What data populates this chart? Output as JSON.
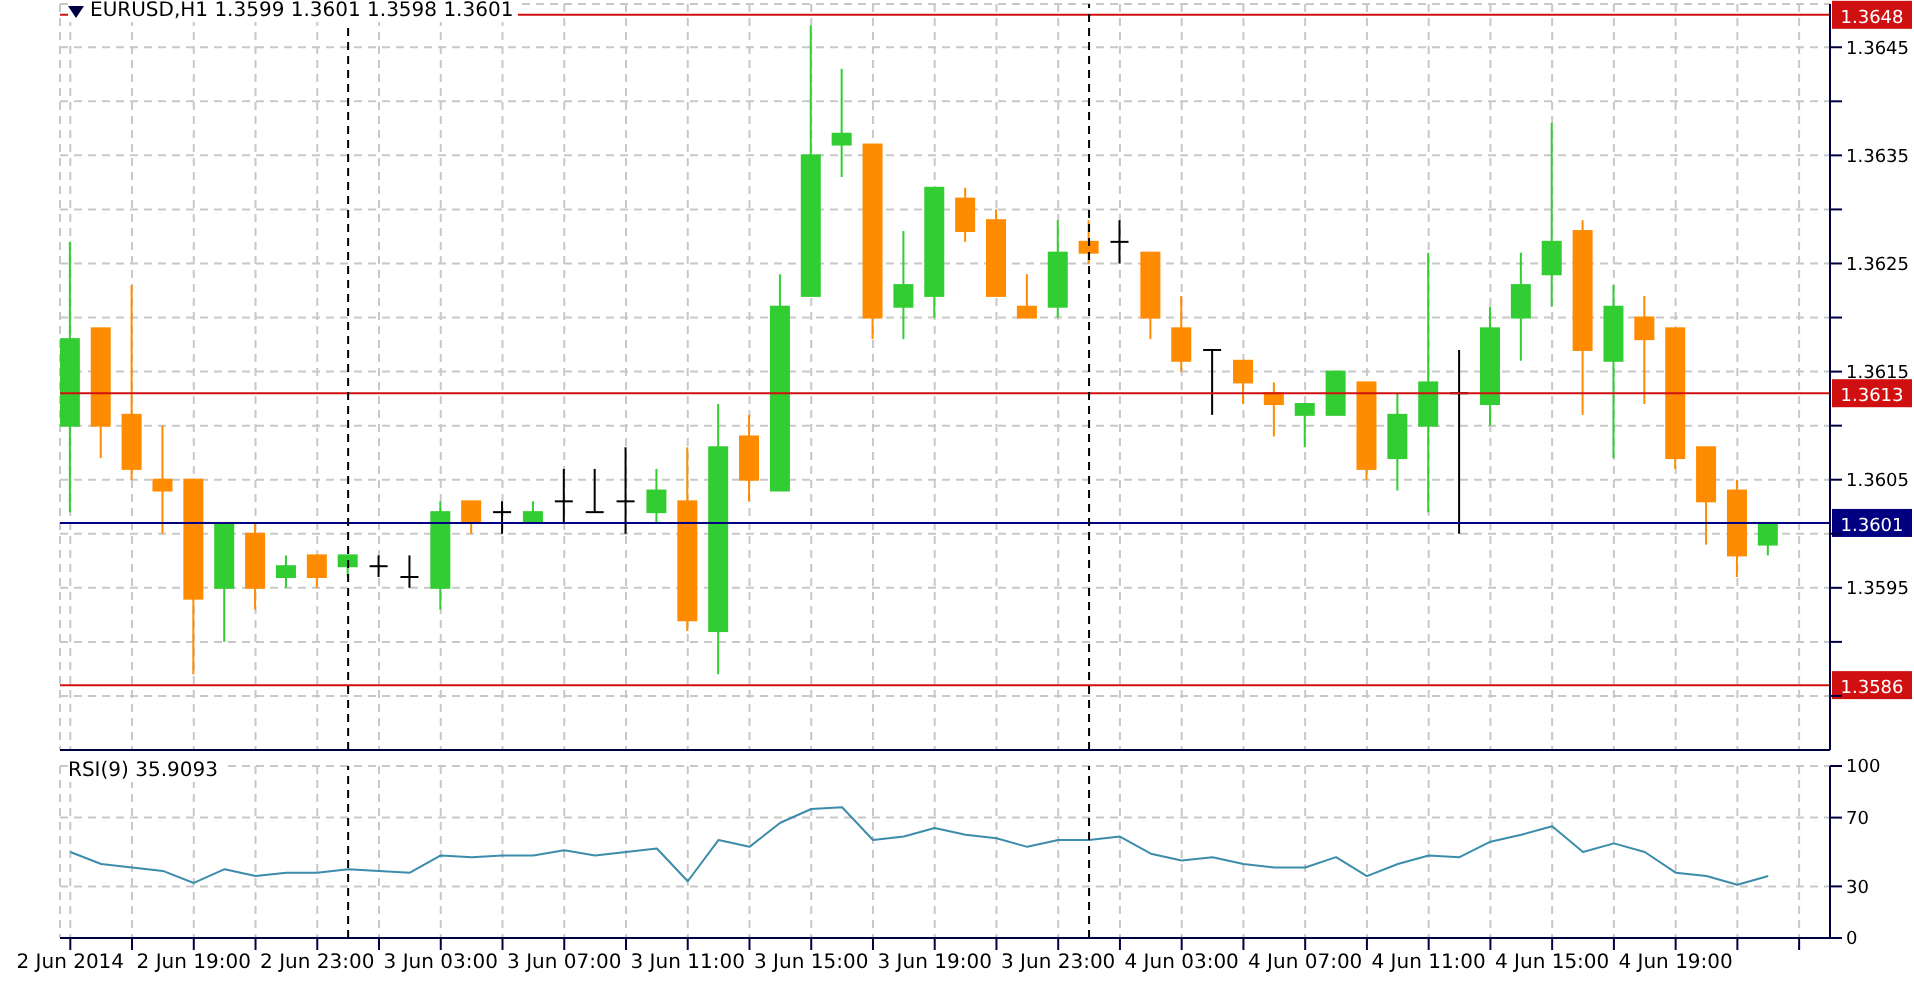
{
  "chart_data": [
    {
      "type": "candlestick",
      "title": "EURUSD,H1 1.3599 1.3601 1.3598 1.3601",
      "x": [
        "2014-06-02T15:00",
        "2014-06-02T16:00",
        "2014-06-02T17:00",
        "2014-06-02T18:00",
        "2014-06-02T19:00",
        "2014-06-02T20:00",
        "2014-06-02T21:00",
        "2014-06-02T22:00",
        "2014-06-02T23:00",
        "2014-06-03T00:00",
        "2014-06-03T01:00",
        "2014-06-03T02:00",
        "2014-06-03T03:00",
        "2014-06-03T04:00",
        "2014-06-03T05:00",
        "2014-06-03T06:00",
        "2014-06-03T07:00",
        "2014-06-03T08:00",
        "2014-06-03T09:00",
        "2014-06-03T10:00",
        "2014-06-03T11:00",
        "2014-06-03T12:00",
        "2014-06-03T13:00",
        "2014-06-03T14:00",
        "2014-06-03T15:00",
        "2014-06-03T16:00",
        "2014-06-03T17:00",
        "2014-06-03T18:00",
        "2014-06-03T19:00",
        "2014-06-03T20:00",
        "2014-06-03T21:00",
        "2014-06-03T22:00",
        "2014-06-03T23:00",
        "2014-06-04T00:00",
        "2014-06-04T01:00",
        "2014-06-04T02:00",
        "2014-06-04T03:00",
        "2014-06-04T04:00",
        "2014-06-04T05:00",
        "2014-06-04T06:00",
        "2014-06-04T07:00",
        "2014-06-04T08:00",
        "2014-06-04T09:00",
        "2014-06-04T10:00",
        "2014-06-04T11:00",
        "2014-06-04T12:00",
        "2014-06-04T13:00",
        "2014-06-04T14:00",
        "2014-06-04T15:00",
        "2014-06-04T16:00",
        "2014-06-04T17:00",
        "2014-06-04T18:00",
        "2014-06-04T19:00",
        "2014-06-04T20:00",
        "2014-06-04T21:00",
        "2014-06-04T22:00"
      ],
      "ohlc": [
        [
          1.361,
          1.3627,
          1.3602,
          1.3618
        ],
        [
          1.3619,
          1.3619,
          1.3607,
          1.361
        ],
        [
          1.3611,
          1.3623,
          1.3605,
          1.3606
        ],
        [
          1.3605,
          1.361,
          1.36,
          1.3604
        ],
        [
          1.3605,
          1.3605,
          1.3587,
          1.3594
        ],
        [
          1.3595,
          1.3601,
          1.359,
          1.3601
        ],
        [
          1.36,
          1.3601,
          1.3593,
          1.3595
        ],
        [
          1.3596,
          1.3598,
          1.3595,
          1.3597
        ],
        [
          1.3598,
          1.3598,
          1.3595,
          1.3596
        ],
        [
          1.3597,
          1.3598,
          1.3596,
          1.3598
        ],
        [
          1.3597,
          1.3598,
          1.3596,
          1.3597
        ],
        [
          1.3596,
          1.3598,
          1.3595,
          1.3596
        ],
        [
          1.3595,
          1.3603,
          1.3593,
          1.3602
        ],
        [
          1.3603,
          1.3603,
          1.36,
          1.3601
        ],
        [
          1.3602,
          1.3603,
          1.36,
          1.3602
        ],
        [
          1.3601,
          1.3603,
          1.3601,
          1.3602
        ],
        [
          1.3603,
          1.3606,
          1.3601,
          1.3603
        ],
        [
          1.3602,
          1.3606,
          1.3602,
          1.3602
        ],
        [
          1.3603,
          1.3608,
          1.36,
          1.3603
        ],
        [
          1.3602,
          1.3606,
          1.3601,
          1.3604
        ],
        [
          1.3603,
          1.3608,
          1.3591,
          1.3592
        ],
        [
          1.3591,
          1.3612,
          1.3587,
          1.3608
        ],
        [
          1.3609,
          1.3611,
          1.3603,
          1.3605
        ],
        [
          1.3604,
          1.3624,
          1.3604,
          1.3621
        ],
        [
          1.3622,
          1.3647,
          1.3622,
          1.3635
        ],
        [
          1.3636,
          1.3643,
          1.3633,
          1.3637
        ],
        [
          1.3636,
          1.3636,
          1.3618,
          1.362
        ],
        [
          1.3621,
          1.3628,
          1.3618,
          1.3623
        ],
        [
          1.3622,
          1.3632,
          1.362,
          1.3632
        ],
        [
          1.3631,
          1.3632,
          1.3627,
          1.3628
        ],
        [
          1.3629,
          1.363,
          1.3622,
          1.3622
        ],
        [
          1.3621,
          1.3624,
          1.362,
          1.362
        ],
        [
          1.3621,
          1.3629,
          1.362,
          1.3626
        ],
        [
          1.3627,
          1.3629,
          1.3625,
          1.3626
        ],
        [
          1.3627,
          1.3629,
          1.3625,
          1.3627
        ],
        [
          1.3626,
          1.3626,
          1.3618,
          1.362
        ],
        [
          1.3619,
          1.3622,
          1.3615,
          1.3616
        ],
        [
          1.3617,
          1.3617,
          1.3611,
          1.3617
        ],
        [
          1.3616,
          1.3616,
          1.3612,
          1.3614
        ],
        [
          1.3613,
          1.3614,
          1.3609,
          1.3612
        ],
        [
          1.3611,
          1.3612,
          1.3608,
          1.3612
        ],
        [
          1.3611,
          1.3615,
          1.3611,
          1.3615
        ],
        [
          1.3614,
          1.3614,
          1.3605,
          1.3606
        ],
        [
          1.3607,
          1.3613,
          1.3604,
          1.3611
        ],
        [
          1.361,
          1.3626,
          1.3602,
          1.3614
        ],
        [
          1.3613,
          1.3617,
          1.36,
          1.3613
        ],
        [
          1.3612,
          1.3621,
          1.361,
          1.3619
        ],
        [
          1.362,
          1.3626,
          1.3616,
          1.3623
        ],
        [
          1.3624,
          1.3638,
          1.3621,
          1.3627
        ],
        [
          1.3628,
          1.3629,
          1.3611,
          1.3617
        ],
        [
          1.3616,
          1.3623,
          1.3607,
          1.3621
        ],
        [
          1.362,
          1.3622,
          1.3612,
          1.3618
        ],
        [
          1.3619,
          1.3619,
          1.3606,
          1.3607
        ],
        [
          1.3608,
          1.3608,
          1.3599,
          1.3603
        ],
        [
          1.3604,
          1.3605,
          1.3596,
          1.3598
        ],
        [
          1.3599,
          1.3601,
          1.3598,
          1.3601
        ]
      ],
      "colors": [
        "#32cd32",
        "#ff8c00",
        "#ff8c00",
        "#ff8c00",
        "#ff8c00",
        "#32cd32",
        "#ff8c00",
        "#32cd32",
        "#ff8c00",
        "#32cd32",
        "#000000",
        "#000000",
        "#32cd32",
        "#ff8c00",
        "#000000",
        "#32cd32",
        "#000000",
        "#000000",
        "#000000",
        "#32cd32",
        "#ff8c00",
        "#32cd32",
        "#ff8c00",
        "#32cd32",
        "#32cd32",
        "#32cd32",
        "#ff8c00",
        "#32cd32",
        "#32cd32",
        "#ff8c00",
        "#ff8c00",
        "#ff8c00",
        "#32cd32",
        "#ff8c00",
        "#000000",
        "#ff8c00",
        "#ff8c00",
        "#000000",
        "#ff8c00",
        "#ff8c00",
        "#32cd32",
        "#32cd32",
        "#ff8c00",
        "#32cd32",
        "#32cd32",
        "#000000",
        "#32cd32",
        "#32cd32",
        "#32cd32",
        "#ff8c00",
        "#32cd32",
        "#ff8c00",
        "#ff8c00",
        "#ff8c00",
        "#ff8c00",
        "#32cd32"
      ],
      "xlim": [
        "2014-06-02T14:40",
        "2014-06-05T00:00"
      ],
      "xticks": [
        {
          "value": "2014-06-02T15:00",
          "label": null
        },
        {
          "value": "2014-06-02T17:00",
          "label": null
        },
        {
          "value": "2014-06-02T19:00",
          "label": null
        },
        {
          "value": "2014-06-02T21:00",
          "label": null
        },
        {
          "value": "2014-06-02T23:00",
          "label": null
        },
        {
          "value": "2014-06-03T01:00",
          "label": null
        },
        {
          "value": "2014-06-03T03:00",
          "label": null
        },
        {
          "value": "2014-06-03T05:00",
          "label": null
        },
        {
          "value": "2014-06-03T07:00",
          "label": null
        },
        {
          "value": "2014-06-03T09:00",
          "label": null
        },
        {
          "value": "2014-06-03T11:00",
          "label": null
        },
        {
          "value": "2014-06-03T13:00",
          "label": null
        },
        {
          "value": "2014-06-03T15:00",
          "label": null
        },
        {
          "value": "2014-06-03T17:00",
          "label": null
        },
        {
          "value": "2014-06-03T19:00",
          "label": null
        },
        {
          "value": "2014-06-03T21:00",
          "label": null
        },
        {
          "value": "2014-06-03T23:00",
          "label": null
        },
        {
          "value": "2014-06-04T01:00",
          "label": null
        },
        {
          "value": "2014-06-04T03:00",
          "label": null
        },
        {
          "value": "2014-06-04T05:00",
          "label": null
        },
        {
          "value": "2014-06-04T07:00",
          "label": null
        },
        {
          "value": "2014-06-04T09:00",
          "label": null
        },
        {
          "value": "2014-06-04T11:00",
          "label": null
        },
        {
          "value": "2014-06-04T13:00",
          "label": null
        },
        {
          "value": "2014-06-04T15:00",
          "label": null
        },
        {
          "value": "2014-06-04T17:00",
          "label": null
        },
        {
          "value": "2014-06-04T19:00",
          "label": null
        },
        {
          "value": "2014-06-04T21:00",
          "label": null
        },
        {
          "value": "2014-06-04T23:00",
          "label": null
        }
      ],
      "ylim": [
        1.358,
        1.3649
      ],
      "yticks": [
        {
          "value": 1.3585,
          "label": null
        },
        {
          "value": 1.359,
          "label": null
        },
        1.3595,
        {
          "value": 1.36,
          "label": null
        },
        1.3605,
        {
          "value": 1.361,
          "label": null
        },
        1.3615,
        {
          "value": 1.362,
          "label": null
        },
        1.3625,
        {
          "value": 1.363,
          "label": null
        },
        1.3635,
        {
          "value": 1.364,
          "label": null
        },
        1.3645
      ],
      "grid": true,
      "tick_labels": "y",
      "ref_lines": [
        {
          "axis": "y",
          "value": 1.3648,
          "label": "1.3648",
          "color": "#d01010"
        },
        {
          "axis": "y",
          "value": 1.3613,
          "label": "1.3613",
          "color": "#d01010"
        },
        {
          "axis": "y",
          "value": 1.3586,
          "label": "1.3586",
          "color": "#d01010"
        },
        {
          "axis": "y",
          "value": 1.3601,
          "label": "1.3601",
          "color": "#000080"
        },
        {
          "axis": "x",
          "value": "2014-06-03T00:00",
          "color": "#000000",
          "line_style": "dashed"
        },
        {
          "axis": "x",
          "value": "2014-06-04T00:00",
          "color": "#000000",
          "line_style": "dashed"
        }
      ]
    },
    {
      "type": "line",
      "title": "RSI(9) 35.9093",
      "x": [
        "2014-06-02T15:00",
        "2014-06-02T16:00",
        "2014-06-02T17:00",
        "2014-06-02T18:00",
        "2014-06-02T19:00",
        "2014-06-02T20:00",
        "2014-06-02T21:00",
        "2014-06-02T22:00",
        "2014-06-02T23:00",
        "2014-06-03T00:00",
        "2014-06-03T01:00",
        "2014-06-03T02:00",
        "2014-06-03T03:00",
        "2014-06-03T04:00",
        "2014-06-03T05:00",
        "2014-06-03T06:00",
        "2014-06-03T07:00",
        "2014-06-03T08:00",
        "2014-06-03T09:00",
        "2014-06-03T10:00",
        "2014-06-03T11:00",
        "2014-06-03T12:00",
        "2014-06-03T13:00",
        "2014-06-03T14:00",
        "2014-06-03T15:00",
        "2014-06-03T16:00",
        "2014-06-03T17:00",
        "2014-06-03T18:00",
        "2014-06-03T19:00",
        "2014-06-03T20:00",
        "2014-06-03T21:00",
        "2014-06-03T22:00",
        "2014-06-03T23:00",
        "2014-06-04T00:00",
        "2014-06-04T01:00",
        "2014-06-04T02:00",
        "2014-06-04T03:00",
        "2014-06-04T04:00",
        "2014-06-04T05:00",
        "2014-06-04T06:00",
        "2014-06-04T07:00",
        "2014-06-04T08:00",
        "2014-06-04T09:00",
        "2014-06-04T10:00",
        "2014-06-04T11:00",
        "2014-06-04T12:00",
        "2014-06-04T13:00",
        "2014-06-04T14:00",
        "2014-06-04T15:00",
        "2014-06-04T16:00",
        "2014-06-04T17:00",
        "2014-06-04T18:00",
        "2014-06-04T19:00",
        "2014-06-04T20:00",
        "2014-06-04T21:00",
        "2014-06-04T22:00"
      ],
      "series": [
        {
          "color": "#3c8dab",
          "values": [
            50,
            43,
            41,
            39,
            32,
            40,
            36,
            38,
            38,
            40,
            39,
            38,
            48,
            47,
            48,
            48,
            51,
            48,
            50,
            52,
            33,
            57,
            53,
            67,
            75,
            76,
            57,
            59,
            64,
            60,
            58,
            53,
            57,
            57,
            59,
            49,
            45,
            47,
            43,
            41,
            41,
            47,
            36,
            43,
            48,
            47,
            56,
            60,
            65,
            50,
            55,
            50,
            38,
            36,
            31,
            36
          ]
        }
      ],
      "xlim": [
        "2014-06-02T14:40",
        "2014-06-05T00:00"
      ],
      "xticks": [
        {
          "value": "2014-06-02T15:00",
          "label": "2 Jun 2014"
        },
        {
          "value": "2014-06-02T17:00",
          "label": null
        },
        {
          "value": "2014-06-02T19:00",
          "label": "2 Jun 19:00"
        },
        {
          "value": "2014-06-02T21:00",
          "label": null
        },
        {
          "value": "2014-06-02T23:00",
          "label": "2 Jun 23:00"
        },
        {
          "value": "2014-06-03T01:00",
          "label": null
        },
        {
          "value": "2014-06-03T03:00",
          "label": "3 Jun 03:00"
        },
        {
          "value": "2014-06-03T05:00",
          "label": null
        },
        {
          "value": "2014-06-03T07:00",
          "label": "3 Jun 07:00"
        },
        {
          "value": "2014-06-03T09:00",
          "label": null
        },
        {
          "value": "2014-06-03T11:00",
          "label": "3 Jun 11:00"
        },
        {
          "value": "2014-06-03T13:00",
          "label": null
        },
        {
          "value": "2014-06-03T15:00",
          "label": "3 Jun 15:00"
        },
        {
          "value": "2014-06-03T17:00",
          "label": null
        },
        {
          "value": "2014-06-03T19:00",
          "label": "3 Jun 19:00"
        },
        {
          "value": "2014-06-03T21:00",
          "label": null
        },
        {
          "value": "2014-06-03T23:00",
          "label": "3 Jun 23:00"
        },
        {
          "value": "2014-06-04T01:00",
          "label": null
        },
        {
          "value": "2014-06-04T03:00",
          "label": "4 Jun 03:00"
        },
        {
          "value": "2014-06-04T05:00",
          "label": null
        },
        {
          "value": "2014-06-04T07:00",
          "label": "4 Jun 07:00"
        },
        {
          "value": "2014-06-04T09:00",
          "label": null
        },
        {
          "value": "2014-06-04T11:00",
          "label": "4 Jun 11:00"
        },
        {
          "value": "2014-06-04T13:00",
          "label": null
        },
        {
          "value": "2014-06-04T15:00",
          "label": "4 Jun 15:00"
        },
        {
          "value": "2014-06-04T17:00",
          "label": null
        },
        {
          "value": "2014-06-04T19:00",
          "label": "4 Jun 19:00"
        },
        {
          "value": "2014-06-04T21:00",
          "label": null
        },
        {
          "value": "2014-06-04T23:00",
          "label": null
        }
      ],
      "ylim": [
        0,
        100
      ],
      "yticks": [
        0,
        30,
        70,
        100
      ],
      "grid": true,
      "marker": "none",
      "ref_lines": [
        {
          "axis": "x",
          "value": "2014-06-03T00:00",
          "color": "#000000",
          "line_style": "dashed"
        },
        {
          "axis": "x",
          "value": "2014-06-04T00:00",
          "color": "#000000",
          "line_style": "dashed"
        }
      ]
    }
  ]
}
